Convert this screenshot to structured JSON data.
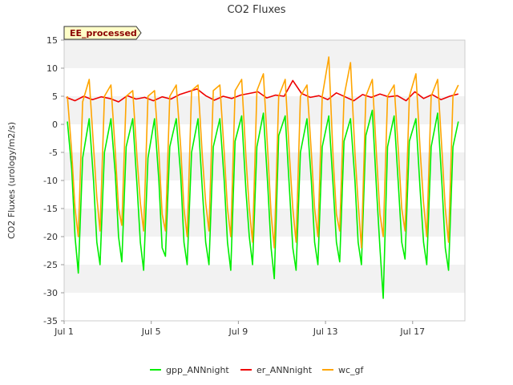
{
  "chart_data": {
    "type": "line",
    "title": "CO2 Fluxes",
    "badge": "EE_processed",
    "xlabel": "",
    "ylabel": "CO2 Fluxes (urology/m2/s)",
    "ylim": [
      -35,
      15
    ],
    "yticks": [
      -35,
      -30,
      -25,
      -20,
      -15,
      -10,
      -5,
      0,
      5,
      10,
      15
    ],
    "xlim": [
      0,
      18.4
    ],
    "xticks": [
      {
        "value": 0,
        "label": "Jul 1"
      },
      {
        "value": 4,
        "label": "Jul 5"
      },
      {
        "value": 8,
        "label": "Jul 9"
      },
      {
        "value": 12,
        "label": "Jul 13"
      },
      {
        "value": 16,
        "label": "Jul 17"
      }
    ],
    "x_units": "days since Jul 1",
    "series": [
      {
        "name": "gpp_ANNnight",
        "color": "#00ee00",
        "x": [
          0.15,
          0.35,
          0.5,
          0.65,
          0.85,
          1.15,
          1.35,
          1.5,
          1.65,
          1.85,
          2.15,
          2.35,
          2.5,
          2.65,
          2.85,
          3.15,
          3.35,
          3.5,
          3.65,
          3.85,
          4.15,
          4.35,
          4.5,
          4.65,
          4.85,
          5.15,
          5.35,
          5.5,
          5.65,
          5.85,
          6.15,
          6.35,
          6.5,
          6.65,
          6.85,
          7.15,
          7.35,
          7.5,
          7.65,
          7.85,
          8.15,
          8.35,
          8.5,
          8.65,
          8.85,
          9.15,
          9.35,
          9.5,
          9.65,
          9.85,
          10.15,
          10.35,
          10.5,
          10.65,
          10.85,
          11.15,
          11.35,
          11.5,
          11.65,
          11.85,
          12.15,
          12.35,
          12.5,
          12.65,
          12.85,
          13.15,
          13.35,
          13.5,
          13.65,
          13.85,
          14.15,
          14.35,
          14.5,
          14.65,
          14.85,
          15.15,
          15.35,
          15.5,
          15.65,
          15.85,
          16.15,
          16.35,
          16.5,
          16.65,
          16.85,
          17.15,
          17.35,
          17.5,
          17.65,
          17.85,
          18.1
        ],
        "y": [
          0.5,
          -8,
          -20,
          -26.5,
          -6,
          1,
          -10,
          -21,
          -25,
          -5,
          1,
          -9,
          -20,
          -24.5,
          -4,
          1,
          -11,
          -21,
          -26,
          -6,
          1,
          -10,
          -22,
          -23.5,
          -4,
          1,
          -9,
          -21,
          -25,
          -5,
          1,
          -12,
          -21,
          -25,
          -4,
          1,
          -10,
          -21,
          -26,
          -3,
          1.5,
          -12,
          -20,
          -25,
          -4,
          2,
          -11,
          -22,
          -27.5,
          -2,
          1.5,
          -12,
          -22,
          -26,
          -5,
          1,
          -10,
          -21,
          -25,
          -4,
          1.5,
          -11,
          -21,
          -24.5,
          -3,
          1,
          -10,
          -21,
          -25,
          -2,
          2.5,
          -12,
          -22,
          -31,
          -4,
          1.5,
          -11,
          -21,
          -24,
          -3,
          1,
          -12,
          -21,
          -25,
          -4,
          2,
          -11,
          -22,
          -26,
          -4,
          0.5
        ]
      },
      {
        "name": "er_ANNnight",
        "color": "#ee0000",
        "x": [
          0.1,
          0.5,
          0.9,
          1.3,
          1.7,
          2.1,
          2.5,
          2.9,
          3.3,
          3.7,
          4.1,
          4.5,
          4.9,
          5.3,
          5.7,
          6.1,
          6.5,
          6.9,
          7.3,
          7.7,
          8.1,
          8.5,
          8.9,
          9.3,
          9.7,
          10.1,
          10.5,
          10.9,
          11.3,
          11.7,
          12.1,
          12.5,
          12.9,
          13.3,
          13.7,
          14.1,
          14.5,
          14.9,
          15.3,
          15.7,
          16.1,
          16.5,
          16.9,
          17.3,
          17.7,
          18.1
        ],
        "y": [
          4.8,
          4.2,
          5.0,
          4.4,
          4.9,
          4.6,
          4.0,
          5.1,
          4.5,
          4.8,
          4.2,
          4.9,
          4.5,
          5.3,
          5.8,
          6.3,
          5.1,
          4.3,
          5.0,
          4.6,
          5.2,
          5.5,
          5.8,
          4.7,
          5.2,
          5.0,
          7.8,
          5.5,
          4.8,
          5.1,
          4.4,
          5.6,
          4.9,
          4.2,
          5.3,
          4.8,
          5.4,
          4.9,
          5.1,
          4.2,
          5.8,
          4.6,
          5.3,
          4.4,
          5.0,
          5.4
        ]
      },
      {
        "name": "wc_gf",
        "color": "#ffa500",
        "x": [
          0.15,
          0.35,
          0.5,
          0.65,
          0.85,
          1.15,
          1.35,
          1.5,
          1.65,
          1.85,
          2.15,
          2.35,
          2.5,
          2.65,
          2.85,
          3.15,
          3.35,
          3.5,
          3.65,
          3.85,
          4.15,
          4.35,
          4.5,
          4.65,
          4.85,
          5.15,
          5.35,
          5.5,
          5.65,
          5.85,
          6.15,
          6.35,
          6.5,
          6.65,
          6.85,
          7.15,
          7.35,
          7.5,
          7.65,
          7.85,
          8.15,
          8.35,
          8.5,
          8.65,
          8.85,
          9.15,
          9.35,
          9.5,
          9.65,
          9.85,
          10.15,
          10.35,
          10.5,
          10.65,
          10.85,
          11.15,
          11.35,
          11.5,
          11.65,
          11.85,
          12.15,
          12.35,
          12.5,
          12.65,
          12.85,
          13.15,
          13.35,
          13.5,
          13.65,
          13.85,
          14.15,
          14.35,
          14.5,
          14.65,
          14.85,
          15.15,
          15.35,
          15.5,
          15.65,
          15.85,
          16.15,
          16.35,
          16.5,
          16.65,
          16.85,
          17.15,
          17.35,
          17.5,
          17.65,
          17.85,
          18.1
        ],
        "y": [
          5,
          -5,
          -15,
          -20,
          4,
          8,
          -4,
          -13,
          -19,
          5,
          7,
          -5,
          -15,
          -18,
          5,
          6,
          -6,
          -14,
          -19,
          5,
          6,
          -5,
          -16,
          -19,
          5,
          7,
          -4,
          -15,
          -20,
          6,
          7,
          -6,
          -14,
          -19,
          6,
          7,
          -5,
          -15,
          -20,
          6,
          8,
          -6,
          -15,
          -21,
          6,
          9,
          -5,
          -16,
          -22,
          5,
          8,
          -6,
          -15,
          -21,
          5,
          7,
          -5,
          -15,
          -20,
          5,
          12,
          -6,
          -16,
          -19,
          5,
          11,
          -5,
          -14,
          -22,
          5,
          8,
          -6,
          -16,
          -20,
          5,
          7,
          -5,
          -15,
          -19,
          5,
          9,
          -5,
          -14,
          -20,
          5,
          8,
          -5,
          -15,
          -21,
          5,
          7
        ]
      }
    ],
    "legend": {
      "position": "bottom-center"
    },
    "grid": {
      "horizontal_bands": true,
      "vertical": false
    }
  }
}
